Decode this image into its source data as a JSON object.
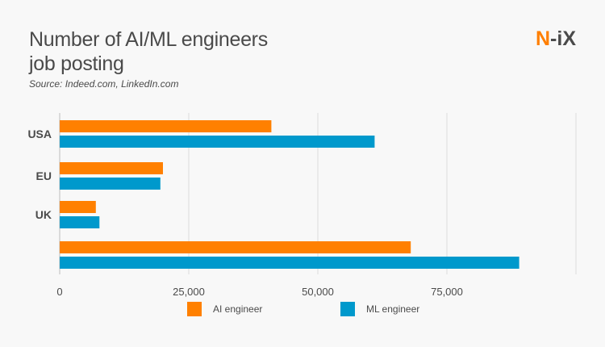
{
  "title_line1": "Number of AI/ML engineers",
  "title_line2": "job posting",
  "source": "Source: Indeed.com, LinkedIn.com",
  "logo": {
    "part1": "N",
    "part2": "-iX"
  },
  "colors": {
    "ai": "#ff8000",
    "ml": "#0099cc",
    "grid": "#dddddd",
    "text": "#4a4a4a"
  },
  "chart_data": {
    "type": "bar",
    "orientation": "horizontal",
    "categories": [
      "USA",
      "EU",
      "UK",
      ""
    ],
    "series": [
      {
        "name": "AI engineer",
        "values": [
          41000,
          20000,
          7000,
          68000
        ]
      },
      {
        "name": "ML engineer",
        "values": [
          61000,
          19500,
          7700,
          89000
        ]
      }
    ],
    "xlim": [
      0,
      100000
    ],
    "xticks": [
      0,
      25000,
      50000,
      75000,
      100000
    ],
    "xtick_labels": [
      "0",
      "25,000",
      "50,000",
      "75,000",
      ""
    ],
    "grid": true,
    "legend_placement": "bottom"
  }
}
